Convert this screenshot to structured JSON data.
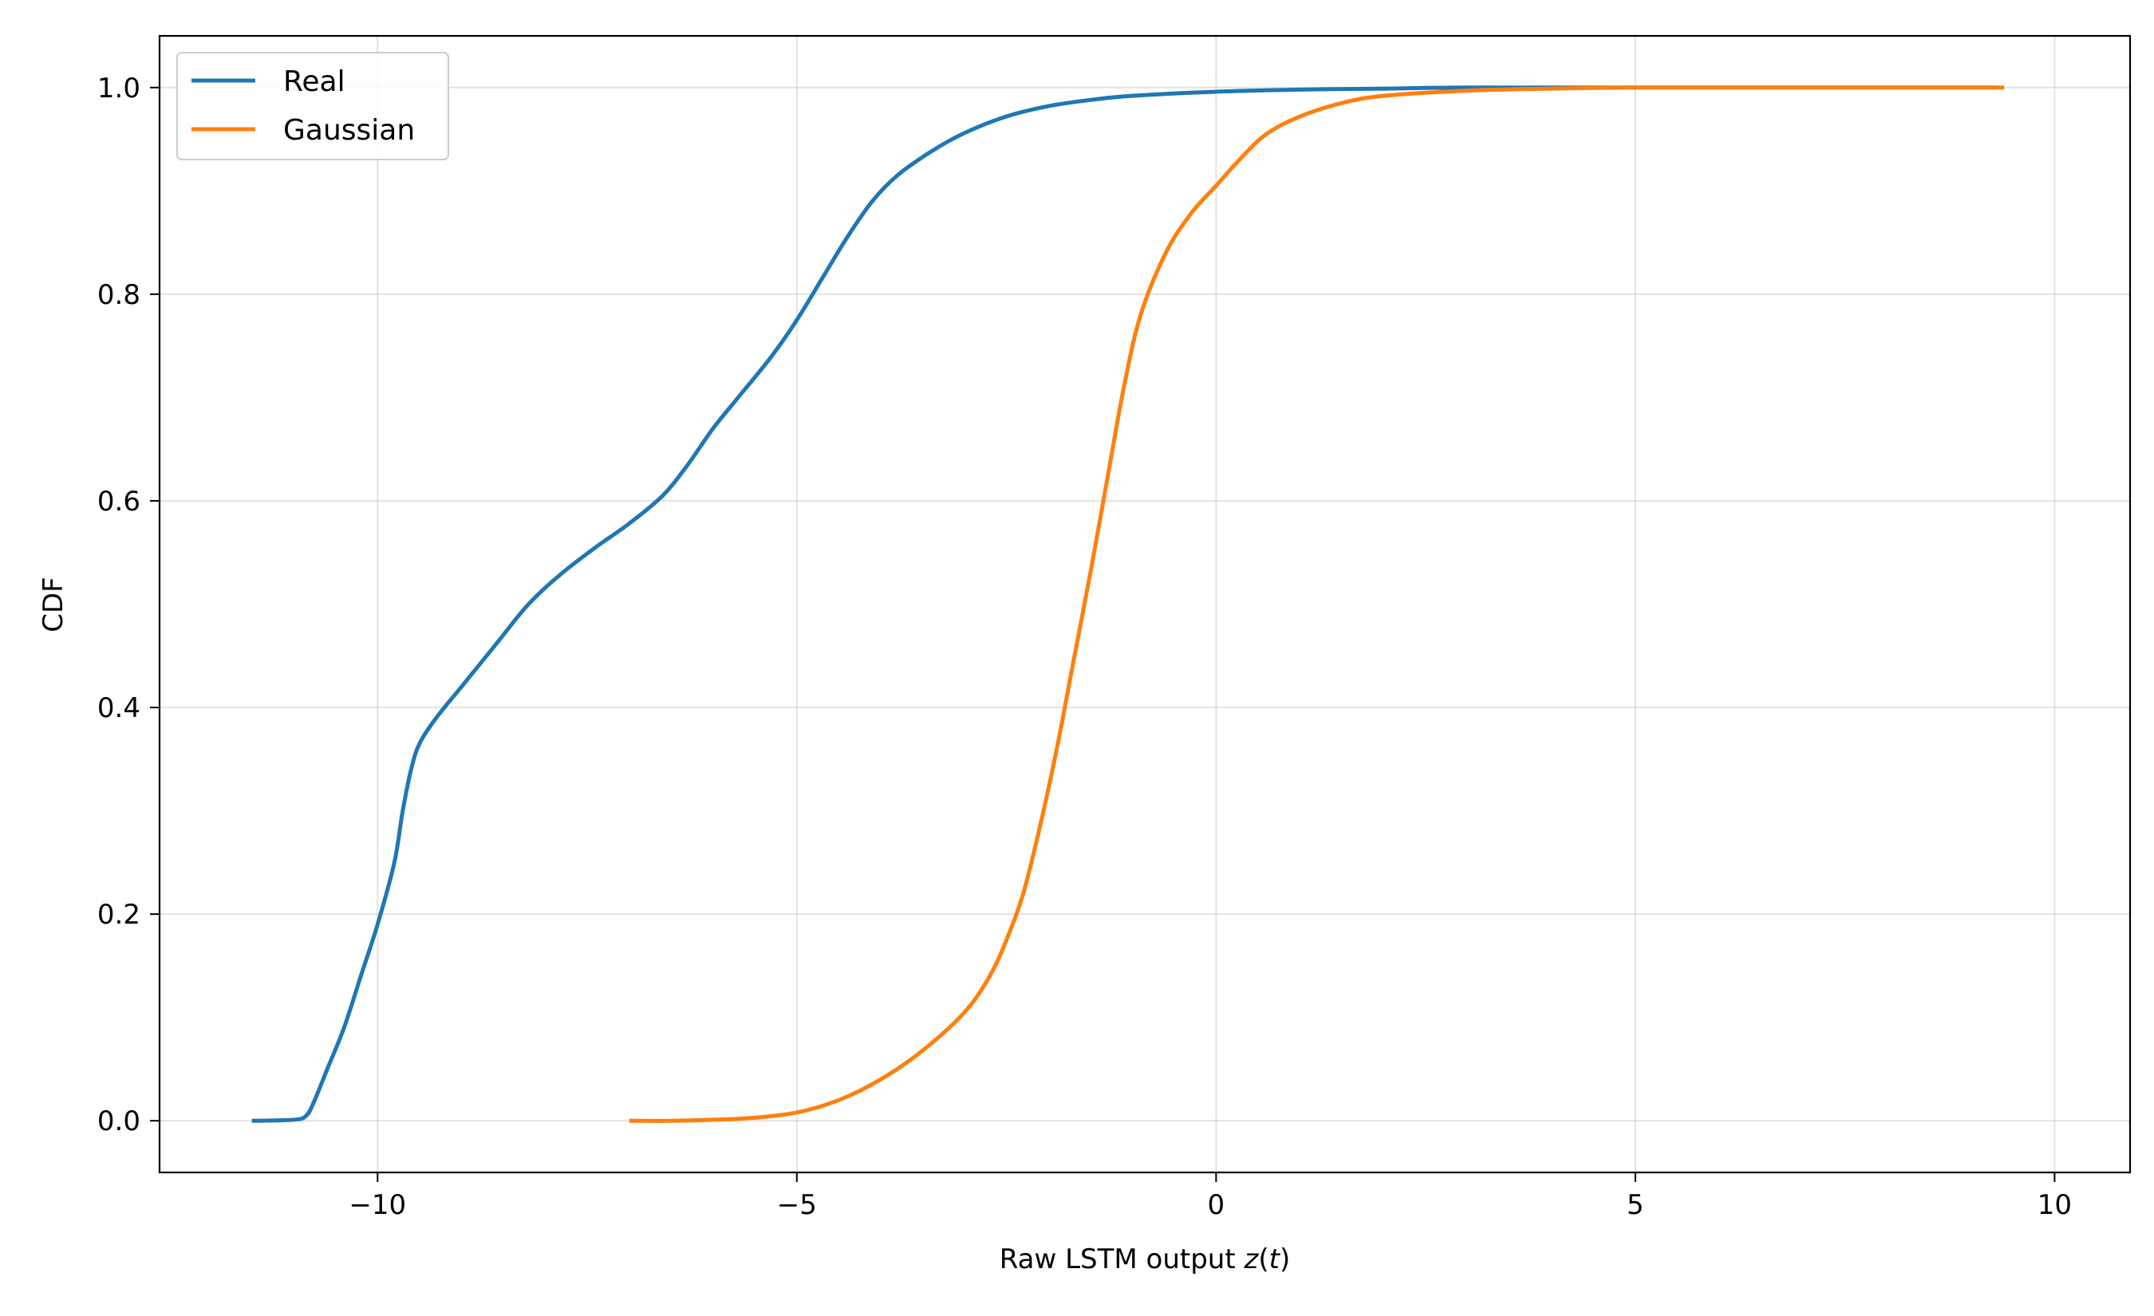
{
  "chart_data": {
    "type": "line",
    "title": "",
    "xlabel": "Raw LSTM output",
    "xlabel_math": "z(t)",
    "ylabel": "CDF",
    "xlim": [
      -12.6,
      10.9
    ],
    "ylim": [
      -0.05,
      1.05
    ],
    "xticks": [
      -10,
      -5,
      0,
      5,
      10
    ],
    "xtick_labels": [
      "−10",
      "−5",
      "0",
      "5",
      "10"
    ],
    "yticks": [
      0.0,
      0.2,
      0.4,
      0.6,
      0.8,
      1.0
    ],
    "ytick_labels": [
      "0.0",
      "0.2",
      "0.4",
      "0.6",
      "0.8",
      "1.0"
    ],
    "grid": true,
    "legend": "upper-left",
    "series": [
      {
        "name": "Real",
        "color": "#1f77b4",
        "points": [
          [
            -11.5,
            0.0
          ],
          [
            -11.0,
            0.001
          ],
          [
            -10.85,
            0.005
          ],
          [
            -10.75,
            0.02
          ],
          [
            -10.6,
            0.05
          ],
          [
            -10.4,
            0.09
          ],
          [
            -10.2,
            0.14
          ],
          [
            -10.0,
            0.19
          ],
          [
            -9.8,
            0.25
          ],
          [
            -9.7,
            0.3
          ],
          [
            -9.6,
            0.34
          ],
          [
            -9.5,
            0.365
          ],
          [
            -9.3,
            0.39
          ],
          [
            -9.0,
            0.42
          ],
          [
            -8.6,
            0.46
          ],
          [
            -8.2,
            0.5
          ],
          [
            -7.8,
            0.53
          ],
          [
            -7.4,
            0.555
          ],
          [
            -7.0,
            0.578
          ],
          [
            -6.6,
            0.605
          ],
          [
            -6.3,
            0.635
          ],
          [
            -6.0,
            0.67
          ],
          [
            -5.7,
            0.7
          ],
          [
            -5.3,
            0.74
          ],
          [
            -5.0,
            0.775
          ],
          [
            -4.7,
            0.815
          ],
          [
            -4.4,
            0.855
          ],
          [
            -4.1,
            0.89
          ],
          [
            -3.8,
            0.915
          ],
          [
            -3.4,
            0.938
          ],
          [
            -3.0,
            0.956
          ],
          [
            -2.5,
            0.972
          ],
          [
            -2.0,
            0.982
          ],
          [
            -1.5,
            0.988
          ],
          [
            -1.0,
            0.992
          ],
          [
            0.0,
            0.996
          ],
          [
            1.0,
            0.998
          ],
          [
            2.0,
            0.999
          ],
          [
            3.0,
            1.0
          ],
          [
            5.0,
            1.0
          ],
          [
            7.0,
            1.0
          ],
          [
            9.3,
            1.0
          ]
        ]
      },
      {
        "name": "Gaussian",
        "color": "#ff7f0e",
        "points": [
          [
            -7.0,
            0.0
          ],
          [
            -6.5,
            0.0
          ],
          [
            -6.0,
            0.001
          ],
          [
            -5.5,
            0.003
          ],
          [
            -5.0,
            0.008
          ],
          [
            -4.5,
            0.02
          ],
          [
            -4.0,
            0.04
          ],
          [
            -3.5,
            0.068
          ],
          [
            -3.0,
            0.105
          ],
          [
            -2.7,
            0.14
          ],
          [
            -2.5,
            0.175
          ],
          [
            -2.3,
            0.22
          ],
          [
            -2.1,
            0.285
          ],
          [
            -1.9,
            0.36
          ],
          [
            -1.7,
            0.445
          ],
          [
            -1.5,
            0.53
          ],
          [
            -1.3,
            0.62
          ],
          [
            -1.1,
            0.71
          ],
          [
            -0.9,
            0.78
          ],
          [
            -0.6,
            0.84
          ],
          [
            -0.3,
            0.878
          ],
          [
            0.0,
            0.905
          ],
          [
            0.3,
            0.932
          ],
          [
            0.6,
            0.955
          ],
          [
            1.0,
            0.972
          ],
          [
            1.5,
            0.985
          ],
          [
            2.0,
            0.992
          ],
          [
            3.0,
            0.997
          ],
          [
            4.0,
            0.999
          ],
          [
            5.0,
            1.0
          ],
          [
            7.0,
            1.0
          ],
          [
            9.4,
            1.0
          ]
        ]
      }
    ]
  }
}
